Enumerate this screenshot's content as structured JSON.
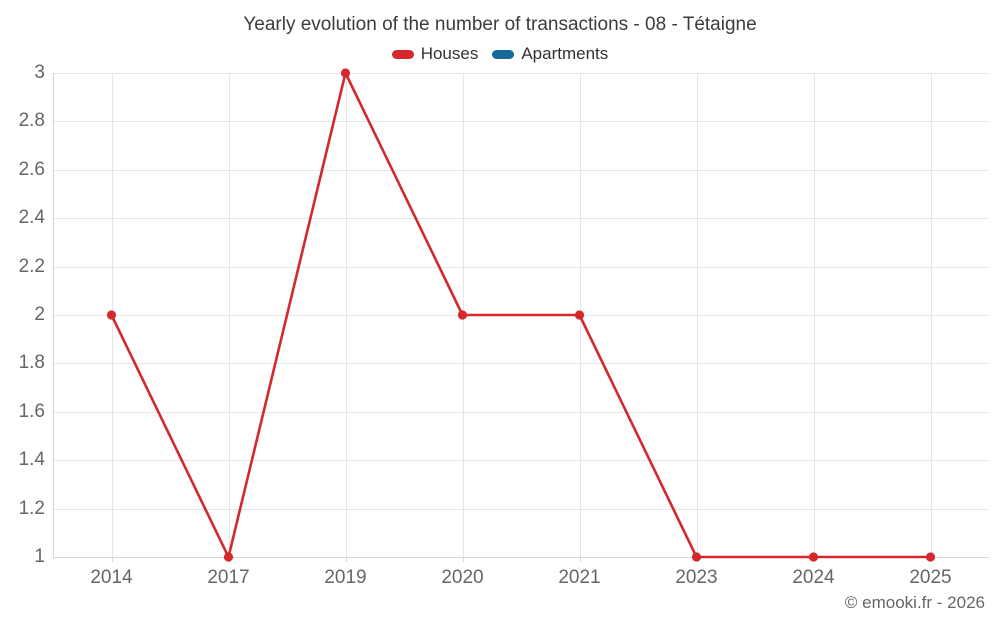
{
  "title": "Yearly evolution of the number of transactions - 08 - Tétaigne",
  "footer": "© emooki.fr - 2026",
  "chart_data": {
    "type": "line",
    "title": "Yearly evolution of the number of transactions - 08 - Tétaigne",
    "categories": [
      "2014",
      "2017",
      "2019",
      "2020",
      "2021",
      "2023",
      "2024",
      "2025"
    ],
    "series": [
      {
        "name": "Houses",
        "color": "#d4282d",
        "values": [
          2,
          1,
          3,
          2,
          2,
          1,
          1,
          1
        ]
      },
      {
        "name": "Apartments",
        "color": "#17699c",
        "values": []
      }
    ],
    "xlabel": "",
    "ylabel": "",
    "ylim": [
      1,
      3
    ],
    "yticks": [
      1,
      1.2,
      1.4,
      1.6,
      1.8,
      2,
      2.2,
      2.4,
      2.6,
      2.8,
      3
    ],
    "grid": true,
    "legend_position": "top"
  },
  "colors": {
    "grid": "#e6e6e6",
    "axis": "#d6d6d6",
    "background": "#ffffff",
    "title_text": "#3c3c3c",
    "legend_text": "#333333",
    "axis_label_text": "#666666"
  }
}
